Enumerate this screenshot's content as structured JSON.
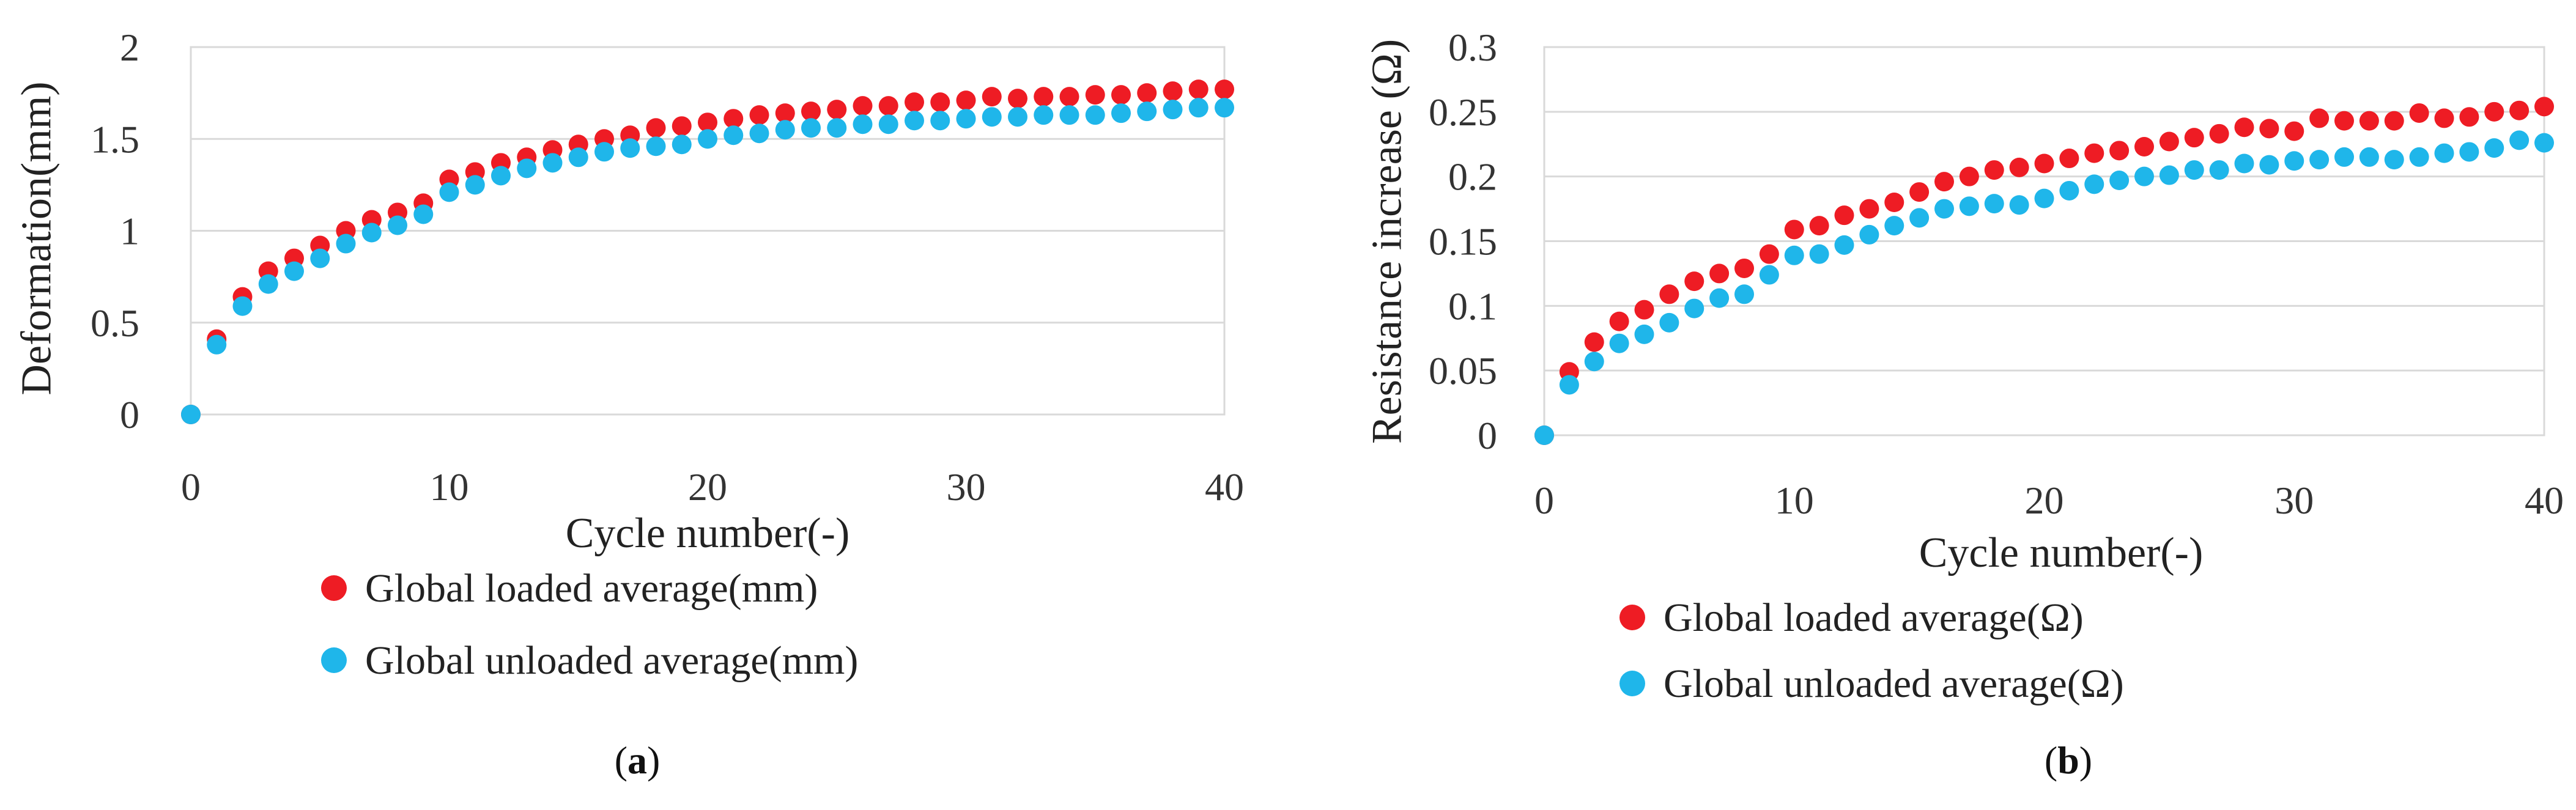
{
  "chart_data": [
    {
      "type": "scatter",
      "panel_label": "a",
      "xlabel": "Cycle number(-)",
      "ylabel": "Deformation(mm)",
      "xlim": [
        0,
        40
      ],
      "ylim": [
        0,
        2
      ],
      "x_ticks": [
        "0",
        "10",
        "20",
        "30",
        "40"
      ],
      "y_ticks": [
        "0",
        "0.5",
        "1",
        "1.5",
        "2"
      ],
      "grid": "horizontal",
      "legend_position": "bottom",
      "colors": {
        "loaded": "#ee1c24",
        "unloaded": "#1fb6ea"
      },
      "series": [
        {
          "name": "Global loaded average(mm)",
          "color": "#ee1c24",
          "x": [
            0,
            1,
            2,
            3,
            4,
            5,
            6,
            7,
            8,
            9,
            10,
            11,
            12,
            13,
            14,
            15,
            16,
            17,
            18,
            19,
            20,
            21,
            22,
            23,
            24,
            25,
            26,
            27,
            28,
            29,
            30,
            31,
            32,
            33,
            34,
            35,
            36,
            37,
            38,
            39,
            40
          ],
          "y": [
            0,
            0.41,
            0.64,
            0.78,
            0.85,
            0.92,
            1.0,
            1.06,
            1.1,
            1.15,
            1.28,
            1.32,
            1.37,
            1.4,
            1.44,
            1.47,
            1.5,
            1.52,
            1.56,
            1.57,
            1.59,
            1.61,
            1.63,
            1.64,
            1.65,
            1.66,
            1.68,
            1.68,
            1.7,
            1.7,
            1.71,
            1.73,
            1.72,
            1.73,
            1.73,
            1.74,
            1.74,
            1.75,
            1.76,
            1.77,
            1.77
          ]
        },
        {
          "name": "Global unloaded average(mm)",
          "color": "#1fb6ea",
          "x": [
            0,
            1,
            2,
            3,
            4,
            5,
            6,
            7,
            8,
            9,
            10,
            11,
            12,
            13,
            14,
            15,
            16,
            17,
            18,
            19,
            20,
            21,
            22,
            23,
            24,
            25,
            26,
            27,
            28,
            29,
            30,
            31,
            32,
            33,
            34,
            35,
            36,
            37,
            38,
            39,
            40
          ],
          "y": [
            0,
            0.38,
            0.59,
            0.71,
            0.78,
            0.85,
            0.93,
            0.99,
            1.03,
            1.09,
            1.21,
            1.25,
            1.3,
            1.34,
            1.37,
            1.4,
            1.43,
            1.45,
            1.46,
            1.47,
            1.5,
            1.52,
            1.53,
            1.55,
            1.56,
            1.56,
            1.58,
            1.58,
            1.6,
            1.6,
            1.61,
            1.62,
            1.62,
            1.63,
            1.63,
            1.63,
            1.64,
            1.65,
            1.66,
            1.67,
            1.67
          ]
        }
      ]
    },
    {
      "type": "scatter",
      "panel_label": "b",
      "xlabel": "Cycle number(-)",
      "ylabel": "Resistance increase (Ω)",
      "xlim": [
        0,
        40
      ],
      "ylim": [
        0,
        0.3
      ],
      "x_ticks": [
        "0",
        "10",
        "20",
        "30",
        "40"
      ],
      "y_ticks": [
        "0",
        "0.05",
        "0.1",
        "0.15",
        "0.2",
        "0.25",
        "0.3"
      ],
      "grid": "horizontal",
      "legend_position": "bottom",
      "colors": {
        "loaded": "#ee1c24",
        "unloaded": "#1fb6ea"
      },
      "series": [
        {
          "name": "Global loaded average(Ω)",
          "color": "#ee1c24",
          "x": [
            0,
            1,
            2,
            3,
            4,
            5,
            6,
            7,
            8,
            9,
            10,
            11,
            12,
            13,
            14,
            15,
            16,
            17,
            18,
            19,
            20,
            21,
            22,
            23,
            24,
            25,
            26,
            27,
            28,
            29,
            30,
            31,
            32,
            33,
            34,
            35,
            36,
            37,
            38,
            39,
            40
          ],
          "y": [
            0,
            0.049,
            0.072,
            0.088,
            0.097,
            0.109,
            0.119,
            0.125,
            0.129,
            0.14,
            0.159,
            0.162,
            0.17,
            0.175,
            0.18,
            0.188,
            0.196,
            0.2,
            0.205,
            0.207,
            0.21,
            0.214,
            0.218,
            0.22,
            0.223,
            0.227,
            0.23,
            0.233,
            0.238,
            0.237,
            0.235,
            0.245,
            0.243,
            0.243,
            0.243,
            0.249,
            0.245,
            0.246,
            0.25,
            0.251,
            0.254
          ]
        },
        {
          "name": "Global unloaded average(Ω)",
          "color": "#1fb6ea",
          "x": [
            0,
            1,
            2,
            3,
            4,
            5,
            6,
            7,
            8,
            9,
            10,
            11,
            12,
            13,
            14,
            15,
            16,
            17,
            18,
            19,
            20,
            21,
            22,
            23,
            24,
            25,
            26,
            27,
            28,
            29,
            30,
            31,
            32,
            33,
            34,
            35,
            36,
            37,
            38,
            39,
            40
          ],
          "y": [
            0,
            0.039,
            0.057,
            0.071,
            0.078,
            0.087,
            0.098,
            0.106,
            0.109,
            0.124,
            0.139,
            0.14,
            0.147,
            0.155,
            0.162,
            0.168,
            0.175,
            0.177,
            0.179,
            0.178,
            0.183,
            0.189,
            0.194,
            0.197,
            0.2,
            0.201,
            0.205,
            0.205,
            0.21,
            0.209,
            0.212,
            0.213,
            0.215,
            0.215,
            0.213,
            0.215,
            0.218,
            0.219,
            0.222,
            0.228,
            0.226
          ]
        }
      ]
    }
  ]
}
